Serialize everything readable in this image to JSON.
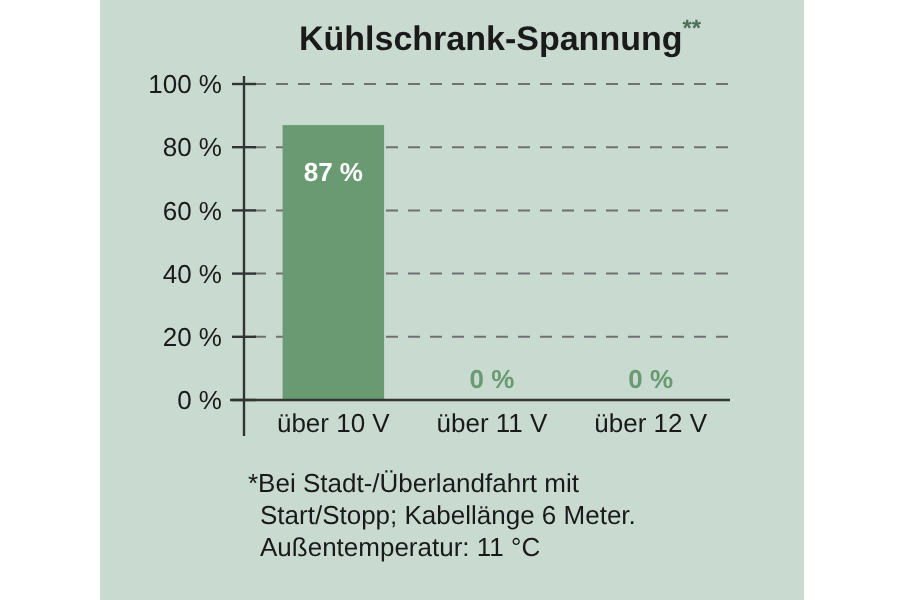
{
  "chart_data": {
    "type": "bar",
    "title": "Kühlschrank-Spannung$^{**}$",
    "categories": [
      "über 10 V",
      "über 11 V",
      "über 12 V"
    ],
    "values": [
      87,
      0,
      0
    ],
    "color": "#6a9a72",
    "value_labels": [
      "87 %",
      "0 %",
      "0 %"
    ],
    "ylim": [
      0,
      100
    ],
    "yticks": [
      {
        "value": 0,
        "label": "0 %"
      },
      {
        "value": 20,
        "label": "20 %"
      },
      {
        "value": 40,
        "label": "40 %"
      },
      {
        "value": 60,
        "label": "60 %"
      },
      {
        "value": 80,
        "label": "80 %"
      },
      {
        "value": 100,
        "label": "100 %"
      }
    ],
    "grid": "y",
    "annotations": [
      "*Bei Stadt-/Überlandfahrt mit\nStart/Stopp; Kabellänge 6 Meter.\nAußentemperatur: 11 °C"
    ]
  }
}
